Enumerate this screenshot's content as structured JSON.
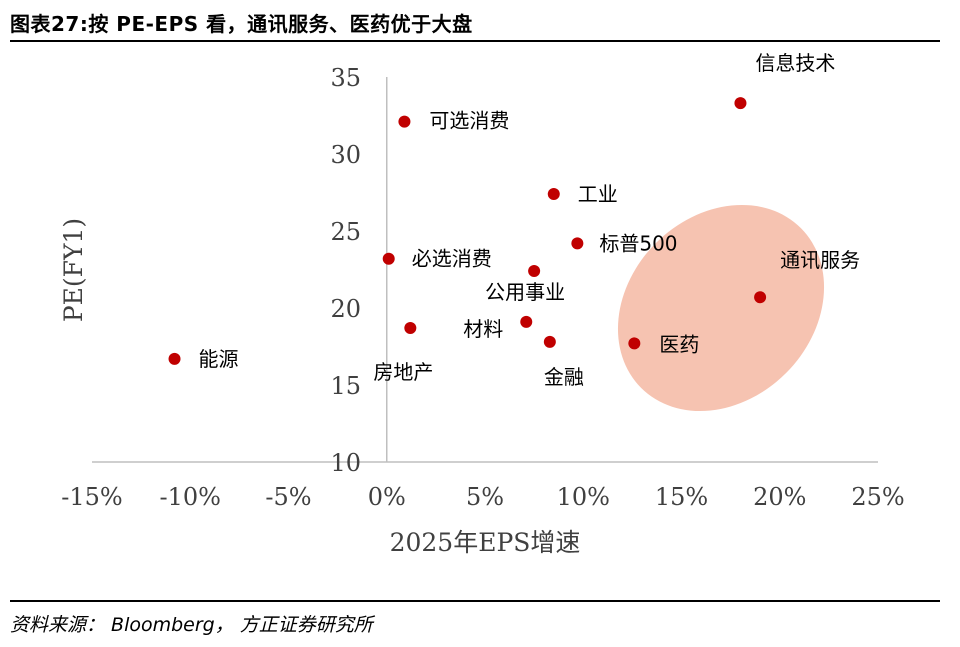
{
  "header": {
    "title": "图表27:按 PE-EPS 看，通讯服务、医药优于大盘"
  },
  "footer": {
    "source": "资料来源： Bloomberg， 方正证券研究所"
  },
  "chart_data": {
    "type": "scatter",
    "xlabel": "2025年EPS增速",
    "ylabel": "PE(FY1)",
    "xlim": [
      -0.15,
      0.25
    ],
    "ylim": [
      10,
      35
    ],
    "x_ticks": [
      "-15%",
      "-10%",
      "-5%",
      "0%",
      "5%",
      "10%",
      "15%",
      "20%",
      "25%"
    ],
    "y_ticks": [
      "10",
      "15",
      "20",
      "25",
      "30",
      "35"
    ],
    "marker_color": "#C00000",
    "highlight_color": "#F4B8A3",
    "points": [
      {
        "name": "信息技术",
        "x": 0.18,
        "y": 33.3
      },
      {
        "name": "可选消费",
        "x": 0.009,
        "y": 32.1
      },
      {
        "name": "工业",
        "x": 0.085,
        "y": 27.4
      },
      {
        "name": "标普500",
        "x": 0.097,
        "y": 24.2
      },
      {
        "name": "必选消费",
        "x": 0.001,
        "y": 23.2
      },
      {
        "name": "公用事业",
        "x": 0.075,
        "y": 22.4
      },
      {
        "name": "通讯服务",
        "x": 0.19,
        "y": 20.7
      },
      {
        "name": "材料",
        "x": 0.071,
        "y": 19.1
      },
      {
        "name": "房地产",
        "x": 0.012,
        "y": 18.7
      },
      {
        "name": "金融",
        "x": 0.083,
        "y": 17.8
      },
      {
        "name": "医药",
        "x": 0.126,
        "y": 17.7
      },
      {
        "name": "能源",
        "x": -0.108,
        "y": 16.7
      }
    ],
    "highlight": {
      "covers": [
        "通讯服务",
        "医药"
      ]
    }
  }
}
